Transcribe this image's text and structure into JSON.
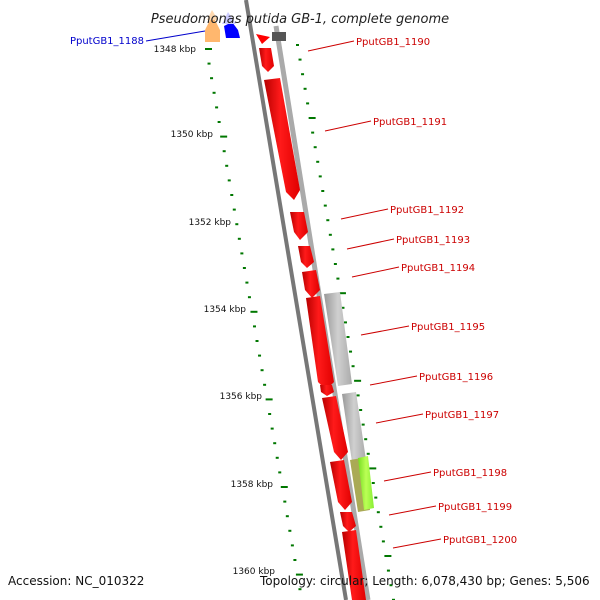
{
  "title": "Pseudomonas putida GB-1, complete genome",
  "accession_text": "Accession: NC_010322",
  "summary_text": "Topology: circular; Length: 6,078,430 bp; Genes: 5,506",
  "colors": {
    "gene_forward": "#ff0000",
    "gene_left_label": "#0000cc",
    "gene_right_label": "#cc0000",
    "backbone": "#888888",
    "tick": "#007700",
    "blast_gray": "#bbbbbb",
    "blast_green": "#99ff33",
    "orange": "#ff9933",
    "blue": "#0000ff"
  },
  "tick_labels": [
    {
      "kbp": 1348,
      "text": "1348 kbp"
    },
    {
      "kbp": 1350,
      "text": "1350 kbp"
    },
    {
      "kbp": 1352,
      "text": "1352 kbp"
    },
    {
      "kbp": 1354,
      "text": "1354 kbp"
    },
    {
      "kbp": 1356,
      "text": "1356 kbp"
    },
    {
      "kbp": 1358,
      "text": "1358 kbp"
    },
    {
      "kbp": 1360,
      "text": "1360 kbp"
    }
  ],
  "genes": [
    {
      "name": "PputGB1_1188",
      "side": "left"
    },
    {
      "name": "PputGB1_1190",
      "side": "right"
    },
    {
      "name": "PputGB1_1191",
      "side": "right"
    },
    {
      "name": "PputGB1_1192",
      "side": "right"
    },
    {
      "name": "PputGB1_1193",
      "side": "right"
    },
    {
      "name": "PputGB1_1194",
      "side": "right"
    },
    {
      "name": "PputGB1_1195",
      "side": "right"
    },
    {
      "name": "PputGB1_1196",
      "side": "right"
    },
    {
      "name": "PputGB1_1197",
      "side": "right"
    },
    {
      "name": "PputGB1_1198",
      "side": "right"
    },
    {
      "name": "PputGB1_1199",
      "side": "right"
    },
    {
      "name": "PputGB1_1200",
      "side": "right"
    }
  ]
}
